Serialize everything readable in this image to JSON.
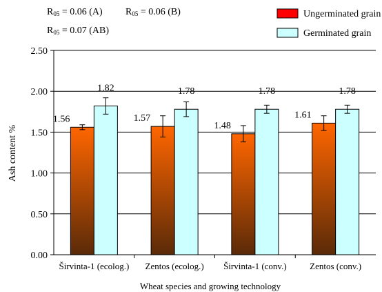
{
  "annotations": {
    "r05_a": {
      "label": "R",
      "sub": "05",
      "text": " = 0.06 (A)"
    },
    "r05_b": {
      "label": "R",
      "sub": "05",
      "text": " = 0.06 (B)"
    },
    "r05_ab": {
      "label": "R",
      "sub": "05",
      "text": " = 0.07 (AB)"
    }
  },
  "chart_data": {
    "type": "bar",
    "title": "",
    "xlabel": "Wheat species and growing technology",
    "ylabel": "Ash content  %",
    "ylim": [
      0,
      2.5
    ],
    "yticks": [
      "0.00",
      "0.50",
      "1.00",
      "1.50",
      "2.00",
      "2.50"
    ],
    "grid": true,
    "legend": "top-right",
    "categories": [
      "Širvinta-1 (ecolog.)",
      "Zentos (ecolog.)",
      "Širvinta-1 (conv.)",
      "Zentos (conv.)"
    ],
    "series": [
      {
        "name": "Ungerminated grain",
        "values": [
          1.56,
          1.57,
          1.48,
          1.61
        ],
        "labels": [
          "1.56",
          "1.57",
          "1.48",
          "1.61"
        ],
        "error": [
          0.03,
          0.13,
          0.1,
          0.09
        ],
        "legend_color": "#ff0000",
        "color_top": "#ff6600",
        "color_bottom": "#5a2a08"
      },
      {
        "name": "Germinated grain",
        "values": [
          1.82,
          1.78,
          1.78,
          1.78
        ],
        "labels": [
          "1.82",
          "1.78",
          "1.78",
          "1.78"
        ],
        "error": [
          0.1,
          0.09,
          0.05,
          0.05
        ],
        "legend_color": "#ccffff",
        "color_top": "#ccffff",
        "color_bottom": "#ccffff"
      }
    ]
  }
}
